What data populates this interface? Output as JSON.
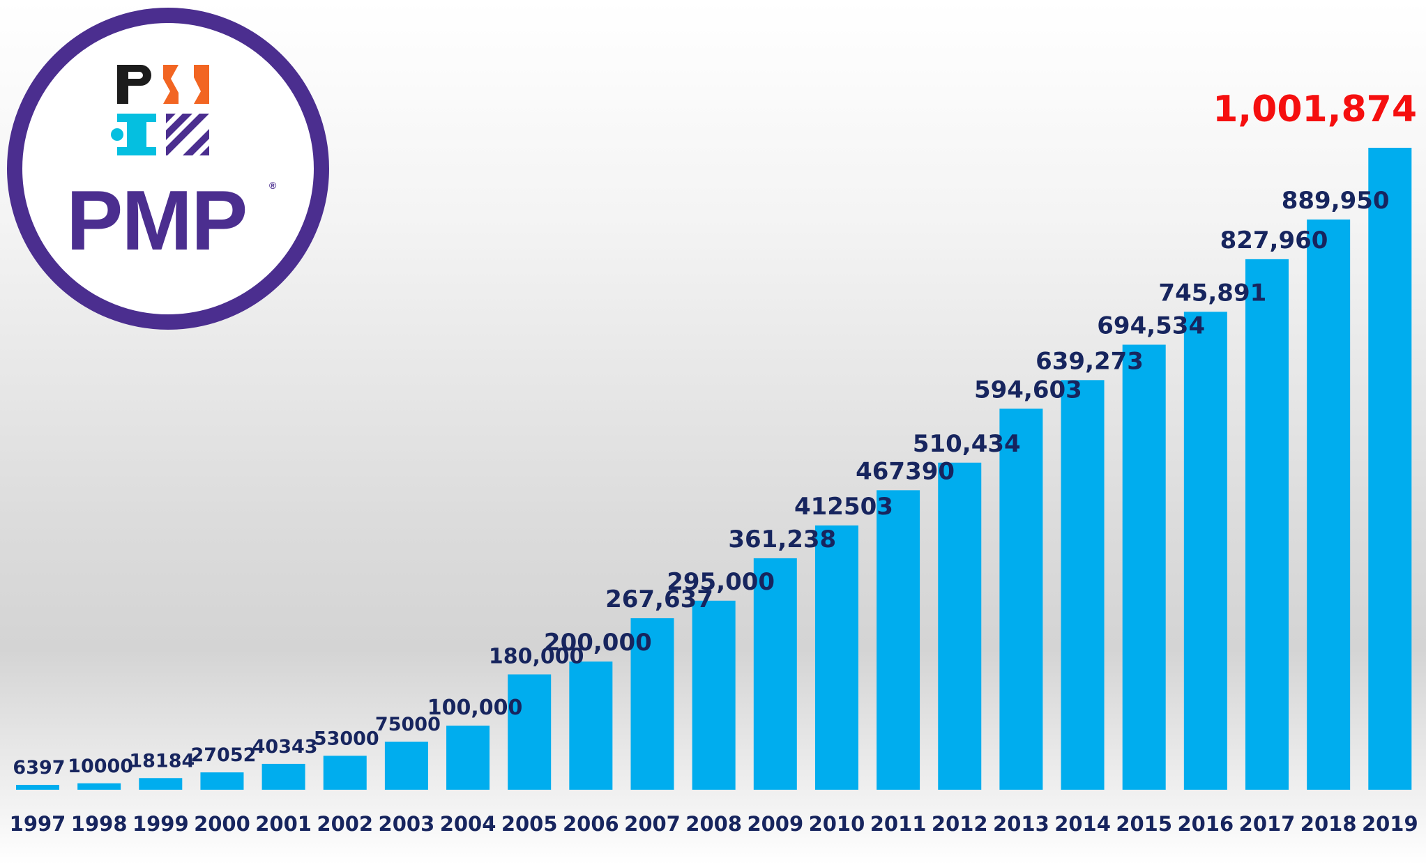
{
  "logo": {
    "name": "PMP",
    "reg": "®"
  },
  "colors": {
    "bar": "#00adee",
    "label": "#17255e",
    "highlight": "#f50f0f",
    "brand": "#4b2e8f",
    "accent": "#f26522"
  },
  "chart_data": {
    "type": "bar",
    "title": "",
    "xlabel": "",
    "ylabel": "",
    "ylim": [
      0,
      1050000
    ],
    "categories": [
      "1997",
      "1998",
      "1999",
      "2000",
      "2001",
      "2002",
      "2003",
      "2004",
      "2005",
      "2006",
      "2007",
      "2008",
      "2009",
      "2010",
      "2011",
      "2012",
      "2013",
      "2014",
      "2015",
      "2016",
      "2017",
      "2018",
      "2019"
    ],
    "values": [
      6397,
      10000,
      18184,
      27052,
      40343,
      53000,
      75000,
      100000,
      180000,
      200000,
      267637,
      295000,
      361238,
      412503,
      467390,
      510434,
      594603,
      639273,
      694534,
      745891,
      827960,
      889950,
      1001874
    ],
    "labels": [
      "6397",
      "10000",
      "18184",
      "27052",
      "40343",
      "53000",
      "75000",
      "100,000",
      "180,000",
      "200,000",
      "267,637",
      "295,000",
      "361,238",
      "412503",
      "467390",
      "510,434",
      "594,603",
      "639,273",
      "694,534",
      "745,891",
      "827,960",
      "889,950",
      "1,001,874"
    ],
    "highlight_index": 22
  }
}
